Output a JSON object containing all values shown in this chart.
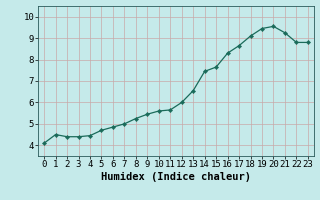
{
  "xlabel": "Humidex (Indice chaleur)",
  "background_color": "#c5eaea",
  "grid_color": "#c8a8a8",
  "line_color": "#1a6b5a",
  "marker_color": "#1a6b5a",
  "x": [
    0,
    1,
    2,
    3,
    4,
    5,
    6,
    7,
    8,
    9,
    10,
    11,
    12,
    13,
    14,
    15,
    16,
    17,
    18,
    19,
    20,
    21,
    22,
    23
  ],
  "y": [
    4.1,
    4.5,
    4.4,
    4.4,
    4.45,
    4.7,
    4.85,
    5.0,
    5.25,
    5.45,
    5.6,
    5.65,
    6.0,
    6.55,
    7.45,
    7.65,
    8.3,
    8.65,
    9.1,
    9.45,
    9.55,
    9.25,
    8.8,
    8.8
  ],
  "ylim_min": 3.5,
  "ylim_max": 10.5,
  "yticks": [
    4,
    5,
    6,
    7,
    8,
    9,
    10
  ],
  "xticks": [
    0,
    1,
    2,
    3,
    4,
    5,
    6,
    7,
    8,
    9,
    10,
    11,
    12,
    13,
    14,
    15,
    16,
    17,
    18,
    19,
    20,
    21,
    22,
    23
  ],
  "xlabel_fontsize": 7.5,
  "tick_fontsize": 6.5,
  "marker_size": 2.2,
  "line_width": 0.9
}
